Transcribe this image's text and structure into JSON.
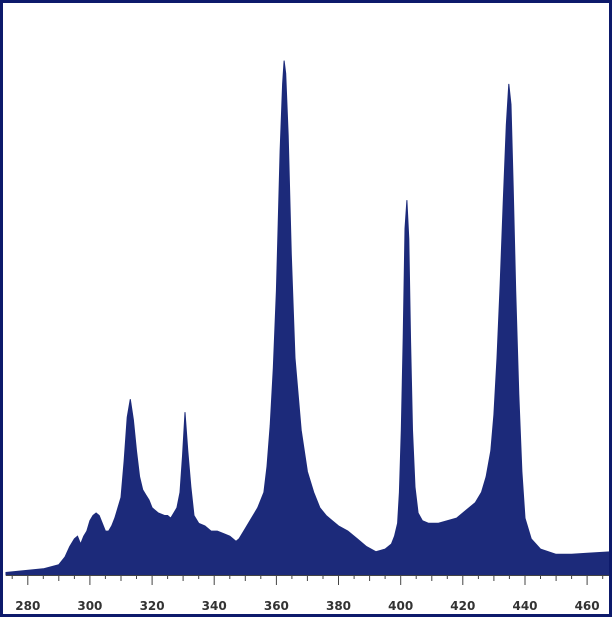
{
  "chart_data": {
    "type": "area",
    "title": "",
    "xlabel": "",
    "ylabel": "",
    "xlim": [
      273,
      468
    ],
    "ylim": [
      0,
      100
    ],
    "grid": false,
    "legend": "none",
    "x_ticks": [
      280,
      300,
      320,
      340,
      360,
      380,
      400,
      420,
      440,
      460
    ],
    "x_tick_labels": [
      "280",
      "300",
      "320",
      "340",
      "360",
      "380",
      "400",
      "420",
      "440",
      "460"
    ],
    "colors": {
      "fill": "#1c2a7a",
      "frame": "#0d1a6b",
      "axis": "#444444"
    },
    "series": [
      {
        "x": [
          273,
          285,
          290,
          292,
          293.5,
          295,
          296,
          297,
          298,
          299,
          300,
          301,
          302,
          303,
          304,
          305,
          306,
          307,
          308,
          309,
          310,
          311,
          312,
          313,
          314,
          315,
          316,
          317,
          318,
          319,
          320,
          322,
          324,
          325,
          326,
          327,
          328,
          329,
          329.8,
          330.6,
          331.5,
          332.5,
          333.5,
          335,
          337,
          339,
          341,
          343,
          345,
          346,
          347,
          348,
          350,
          352,
          354,
          356,
          357,
          358,
          359,
          360,
          360.6,
          361.2,
          362,
          362.5,
          363,
          363.8,
          364.8,
          366,
          368,
          370,
          372,
          374,
          376,
          378,
          380,
          383,
          386,
          389,
          392,
          395,
          397,
          398,
          399,
          399.6,
          400.2,
          400.8,
          401.4,
          402,
          402.6,
          403.2,
          403.8,
          404.6,
          405.6,
          407,
          409,
          412,
          415,
          418,
          421,
          424,
          426,
          427.5,
          429,
          430,
          431,
          432,
          433,
          434,
          434.8,
          435.5,
          436.2,
          437,
          438,
          439,
          440,
          442,
          445,
          450,
          455,
          460,
          468
        ],
        "y": [
          0.5,
          1.2,
          2.0,
          3.5,
          5.5,
          7.0,
          7.5,
          6.0,
          7.5,
          8.5,
          10.5,
          11.5,
          12.0,
          11.5,
          10.0,
          8.5,
          8.5,
          9.5,
          11.0,
          13.0,
          15.0,
          22.0,
          30.5,
          34.0,
          30.0,
          24.0,
          19.0,
          16.5,
          15.5,
          14.5,
          13.0,
          12.0,
          11.5,
          11.5,
          11.0,
          12.0,
          13.0,
          16.0,
          23.0,
          31.5,
          24.0,
          17.0,
          11.5,
          10.0,
          9.5,
          8.5,
          8.5,
          8.0,
          7.5,
          7.0,
          6.5,
          7.0,
          9.0,
          11.0,
          13.0,
          16.0,
          21.0,
          29.0,
          40.0,
          55.0,
          68.0,
          82.0,
          95.0,
          99.5,
          97.0,
          85.0,
          62.0,
          42.0,
          28.0,
          20.0,
          16.0,
          13.0,
          11.5,
          10.5,
          9.5,
          8.5,
          7.0,
          5.5,
          4.5,
          5.0,
          6.0,
          7.5,
          10.0,
          16.0,
          28.0,
          46.0,
          67.0,
          72.5,
          65.0,
          45.0,
          28.0,
          17.0,
          12.0,
          10.5,
          10.0,
          10.0,
          10.5,
          11.0,
          12.5,
          14.0,
          16.0,
          19.0,
          24.0,
          31.0,
          42.0,
          56.0,
          72.0,
          87.0,
          95.0,
          91.0,
          75.0,
          55.0,
          35.0,
          20.0,
          11.0,
          7.0,
          5.0,
          4.0,
          4.0,
          4.2,
          4.5
        ]
      }
    ]
  }
}
